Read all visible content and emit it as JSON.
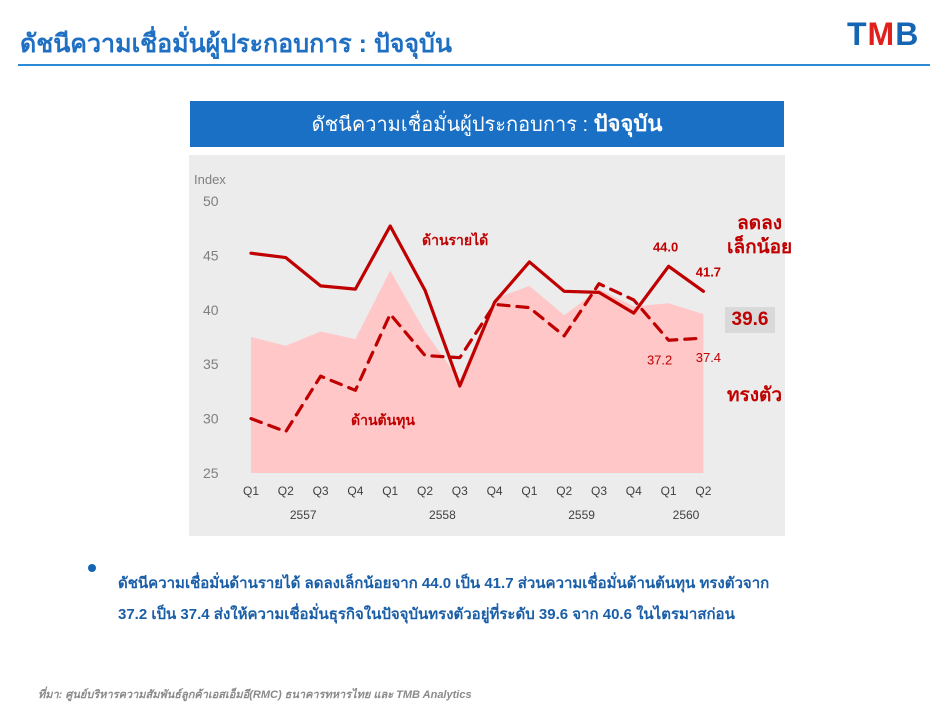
{
  "header": {
    "title": "ดัชนีความเชื่อมั่นผู้ประกอบการ : ปัจจุบัน",
    "logo_text_1": "T",
    "logo_text_2": "M",
    "logo_text_3": "B"
  },
  "banner": {
    "title_part1": "ดัชนีความเชื่อมั่นผู้ประกอบการ : ",
    "title_part2": "ปัจจุบัน"
  },
  "chart_data": {
    "type": "line",
    "ylabel": "Index",
    "ylim": [
      25,
      50
    ],
    "yticks": [
      25,
      30,
      35,
      40,
      45,
      50
    ],
    "categories": [
      "Q1",
      "Q2",
      "Q3",
      "Q4",
      "Q1",
      "Q2",
      "Q3",
      "Q4",
      "Q1",
      "Q2",
      "Q3",
      "Q4",
      "Q1",
      "Q2"
    ],
    "years": [
      {
        "label": "2557",
        "span": [
          0,
          3
        ]
      },
      {
        "label": "2558",
        "span": [
          4,
          7
        ]
      },
      {
        "label": "2559",
        "span": [
          8,
          11
        ]
      },
      {
        "label": "2560",
        "span": [
          12,
          13
        ]
      }
    ],
    "series": [
      {
        "name": "ด้านรายได้",
        "style": "solid",
        "color": "#c00000",
        "values": [
          45.2,
          44.8,
          42.2,
          41.9,
          47.7,
          41.8,
          33.0,
          40.7,
          44.4,
          41.7,
          41.6,
          39.7,
          44.0,
          41.7
        ]
      },
      {
        "name": "ด้านต้นทุน",
        "style": "dashed",
        "color": "#c00000",
        "values": [
          30.0,
          28.8,
          33.9,
          32.6,
          39.6,
          35.8,
          35.6,
          40.5,
          40.2,
          37.6,
          42.4,
          40.9,
          37.2,
          37.4
        ]
      },
      {
        "name": "",
        "style": "area",
        "color": "#ffc7c7",
        "values": [
          37.5,
          36.7,
          38.0,
          37.3,
          43.6,
          38.0,
          33.5,
          41.0,
          42.2,
          39.5,
          41.9,
          40.3,
          40.6,
          39.6
        ]
      }
    ],
    "data_labels": [
      {
        "series": 0,
        "index": 12,
        "text": "44.0"
      },
      {
        "series": 0,
        "index": 13,
        "text": "41.7"
      },
      {
        "series": 1,
        "index": 12,
        "text": "37.2"
      },
      {
        "series": 1,
        "index": 13,
        "text": "37.4"
      }
    ],
    "grid": false,
    "background": "#ececec"
  },
  "annotations": {
    "decline_line1": "ลดลง",
    "decline_line2": "เล็กน้อย",
    "latest_value": "39.6",
    "stable": "ทรงตัว"
  },
  "bullet": {
    "line1": "ดัชนีความเชื่อมั่นด้านรายได้ ลดลงเล็กน้อยจาก 44.0 เป็น 41.7 ส่วนความเชื่อมั่นด้านต้นทุน ทรงตัวจาก",
    "line2": "37.2 เป็น 37.4 ส่งให้ความเชื่อมั่นธุรกิจในปัจจุบันทรงตัวอยู่ที่ระดับ 39.6 จาก 40.6 ในไตรมาสก่อน"
  },
  "footer": {
    "source": "ที่มา: ศูนย์บริหารความสัมพันธ์ลูกค้าเอสเอ็มอี(RMC) ธนาคารทหารไทย และ TMB Analytics"
  },
  "colors": {
    "title_blue": "#1f6fc3",
    "banner_blue": "#1a70c4",
    "accent_red": "#c00000",
    "area_pink": "#ffc7c7"
  }
}
